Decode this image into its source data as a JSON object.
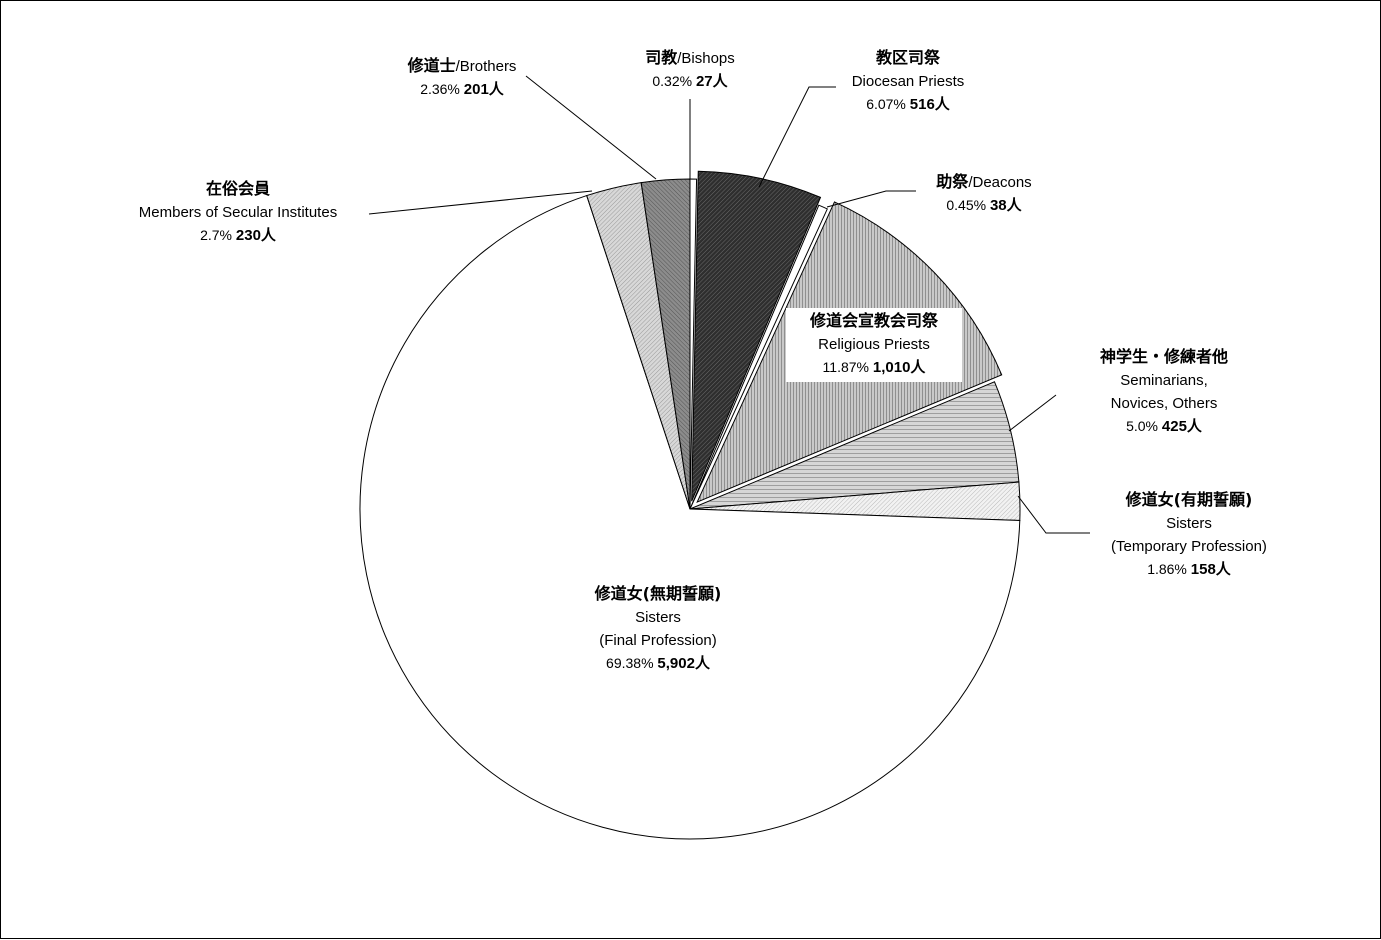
{
  "chart_data": {
    "type": "pie",
    "unit_suffix": "人",
    "slices": [
      {
        "jp": "司教",
        "en": "Bishops",
        "percent": "0.32%",
        "count": "27人",
        "value": 27,
        "color": "#ffffff"
      },
      {
        "jp": "教区司祭",
        "en": "Diocesan Priests",
        "percent": "6.07%",
        "count": "516人",
        "value": 516,
        "color": "#4a4a4a"
      },
      {
        "jp": "助祭",
        "en": "Deacons",
        "percent": "0.45%",
        "count": "38人",
        "value": 38,
        "color": "#ffffff"
      },
      {
        "jp": "修道会宣教会司祭",
        "en": "Religious Priests",
        "percent": "11.87%",
        "count": "1,010人",
        "value": 1010,
        "color": "#9a9a9a"
      },
      {
        "jp": "神学生・修練者他",
        "en": "Seminarians, Novices, Others",
        "en_lines": [
          "Seminarians,",
          "Novices, Others"
        ],
        "percent": "5.0%",
        "count": "425人",
        "value": 425,
        "color": "#b5b5b5"
      },
      {
        "jp": "修道女(有期誓願)",
        "en": "Sisters (Temporary Profession)",
        "en_lines": [
          "Sisters",
          "(Temporary Profession)"
        ],
        "percent": "1.86%",
        "count": "158人",
        "value": 158,
        "color": "#ececec"
      },
      {
        "jp": "修道女(無期誓願)",
        "en": "Sisters (Final Profession)",
        "en_lines": [
          "Sisters",
          "(Final Profession)"
        ],
        "percent": "69.38%",
        "count": "5,902人",
        "value": 5902,
        "color": "#ffffff"
      },
      {
        "jp": "在俗会員",
        "en": "Members of Secular Institutes",
        "percent": "2.7%",
        "count": "230人",
        "value": 230,
        "color": "#c8c8c8"
      },
      {
        "jp": "修道士",
        "en": "Brothers",
        "percent": "2.36%",
        "count": "201人",
        "value": 201,
        "color": "#8a8a8a"
      }
    ]
  }
}
